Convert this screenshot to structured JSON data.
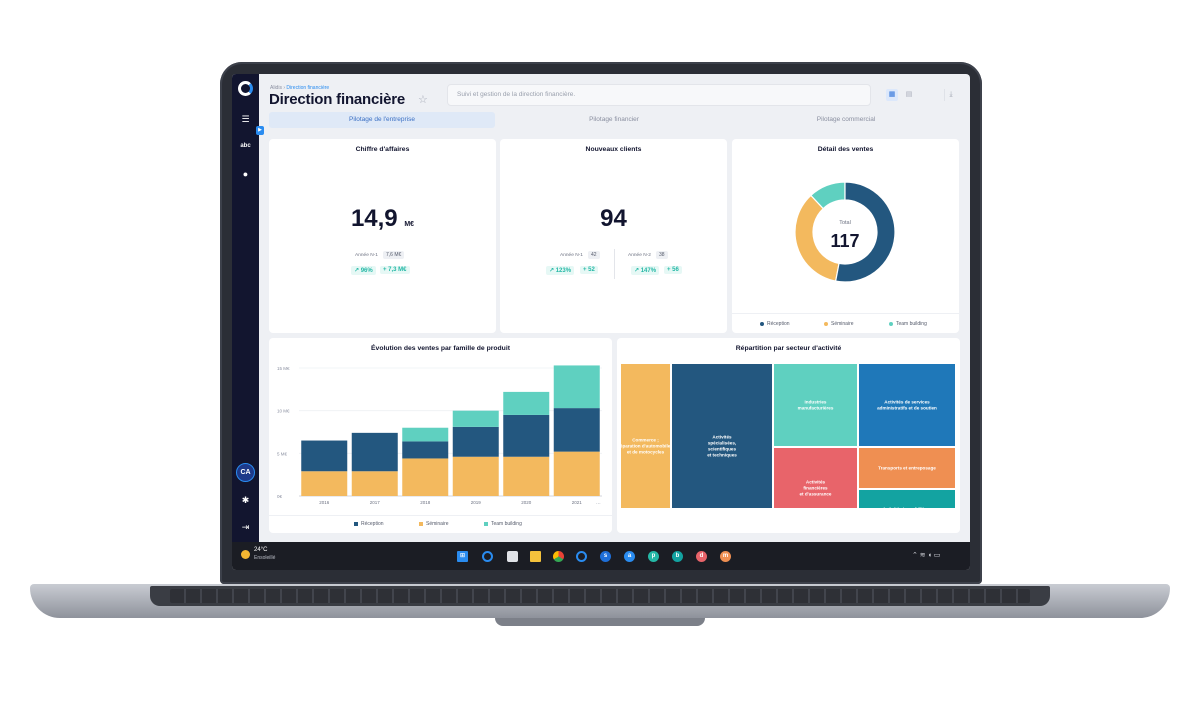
{
  "app": {
    "breadcrumb": {
      "root": "Alidis",
      "current": "Direction financière"
    },
    "title": "Direction financière",
    "search_placeholder": "Suivi et gestion de la direction financière.",
    "icons": [
      "logo-icon",
      "filter-icon",
      "abc-icon",
      "info-icon",
      "settings-icon",
      "logout-icon",
      "star-icon",
      "grid-view-icon",
      "list-view-icon",
      "download-icon"
    ],
    "sidebar": {
      "abc_label": "abc",
      "user_initials": "CA"
    }
  },
  "tabs": [
    {
      "label": "Pilotage de l'entreprise",
      "active": true
    },
    {
      "label": "Pilotage financier",
      "active": false
    },
    {
      "label": "Pilotage commercial",
      "active": false
    }
  ],
  "kpi_ca": {
    "title": "Chiffre d'affaires",
    "value": "14,9",
    "unit": "M€",
    "prev_label": "Année N-1",
    "prev_value": "7,6 M€",
    "pct": "↗ 96%",
    "diff": "+ 7,3 M€"
  },
  "kpi_clients": {
    "title": "Nouveaux clients",
    "value": "94",
    "n1_label": "Année N-1",
    "n1_value": "42",
    "n1_pct": "↗ 123%",
    "n1_diff": "+ 52",
    "n2_label": "Année N-2",
    "n2_value": "38",
    "n2_pct": "↗ 147%",
    "n2_diff": "+ 56"
  },
  "ventes": {
    "title": "Détail des ventes",
    "center_label": "Total",
    "center_value": "117",
    "legend": [
      "Réception",
      "Séminaire",
      "Team building"
    ]
  },
  "evolution": {
    "title": "Évolution des ventes par famille de produit",
    "more": "⋯"
  },
  "repartition": {
    "title": "Répartition par secteur d'activité"
  },
  "chart_data": [
    {
      "type": "pie",
      "title": "Détail des ventes",
      "labels": [
        "Réception",
        "Séminaire",
        "Team building"
      ],
      "values": [
        62,
        41,
        14
      ],
      "total": 117,
      "colors": [
        "#23577f",
        "#f3b95e",
        "#5fd0c0"
      ]
    },
    {
      "type": "bar",
      "stacked": true,
      "title": "Évolution des ventes par famille de produit",
      "categories": [
        "2016",
        "2017",
        "2018",
        "2019",
        "2020",
        "2021"
      ],
      "series": [
        {
          "name": "Séminaire",
          "values": [
            2.9,
            2.9,
            4.4,
            4.6,
            4.6,
            5.2
          ],
          "color": "#f3b95e"
        },
        {
          "name": "Réception",
          "values": [
            3.6,
            4.5,
            2.0,
            3.5,
            4.9,
            5.1
          ],
          "color": "#23577f"
        },
        {
          "name": "Team building",
          "values": [
            0,
            0,
            1.6,
            1.9,
            2.7,
            5.0
          ],
          "color": "#5fd0c0"
        }
      ],
      "yticks": [
        "0€",
        "5 M€",
        "10 M€",
        "15 M€"
      ],
      "ylim": [
        0,
        15
      ],
      "grid": true,
      "legend": "bottom"
    },
    {
      "type": "treemap",
      "title": "Répartition par secteur d'activité",
      "items": [
        {
          "label": "Commerce ; réparation d'automobiles et de motocycles",
          "color": "#f3b95e"
        },
        {
          "label": "Activités spécialisées, scientifiques et techniques",
          "color": "#23577f"
        },
        {
          "label": "Industries manufacturières",
          "color": "#5fd0c0"
        },
        {
          "label": "Activités financières et d'assurance",
          "color": "#e8646a"
        },
        {
          "label": "Activités de services administratifs et de soutien",
          "color": "#1f78b9"
        },
        {
          "label": "Transports et entreposage",
          "color": "#ef8f52"
        },
        {
          "label": "Activités immobilières",
          "color": "#13a3a1"
        }
      ]
    }
  ],
  "taskbar": {
    "temp": "24°C",
    "weather": "Ensoleillé",
    "apps": [
      "windows-icon",
      "search-icon",
      "taskview-icon",
      "folder-icon",
      "chrome-icon",
      "edge-icon",
      "alidis-icon",
      "s-app-icon",
      "a-app-icon",
      "p-app-icon",
      "b-app-icon",
      "d-app-icon",
      "m-app-icon"
    ],
    "app_letters": [
      "s",
      "a",
      "p",
      "b",
      "d",
      "m"
    ],
    "tray": "⌃  ≋  ◖  ▭"
  }
}
